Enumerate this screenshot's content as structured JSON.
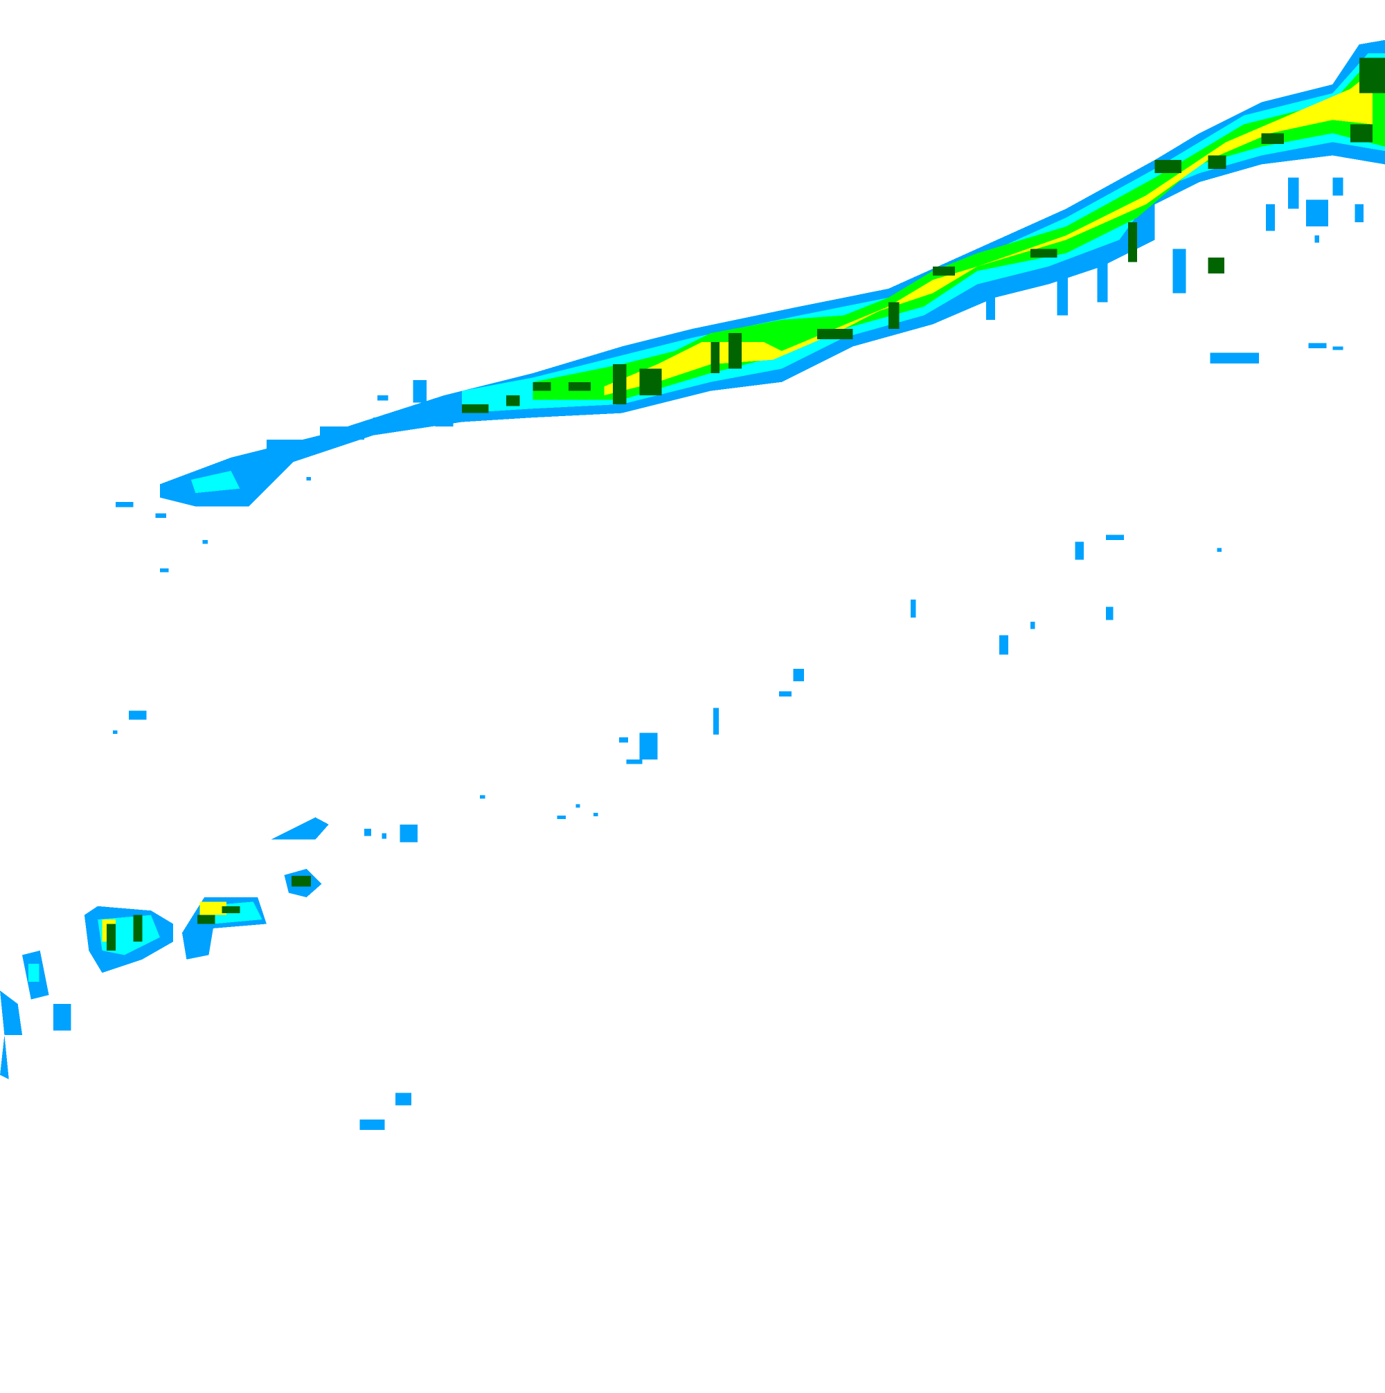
{
  "map": {
    "layer": "precipitation-radar-overlay",
    "colors": {
      "light": "#00a2ff",
      "moderate": "#00ffff",
      "heavy": "#00ff00",
      "very_heavy": "#ffff00",
      "intense": "#006400"
    }
  }
}
